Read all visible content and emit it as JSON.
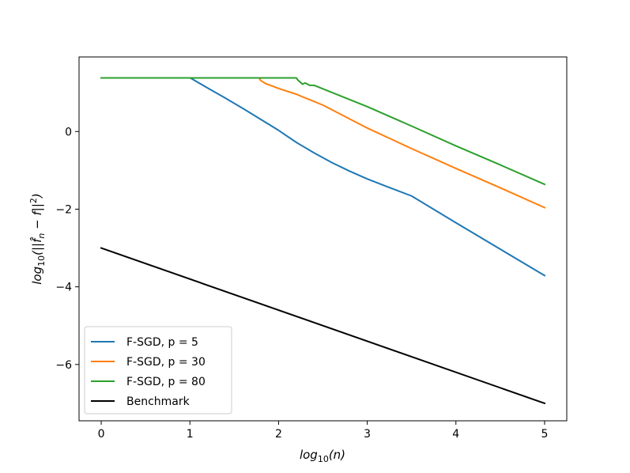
{
  "chart_data": {
    "type": "line",
    "title": "",
    "xlabel": "log10(n)",
    "ylabel": "log10(||f̂n − f||²)",
    "xlim": [
      -0.25,
      5.25
    ],
    "ylim": [
      -7.45,
      1.92
    ],
    "xticks": [
      0,
      1,
      2,
      3,
      4,
      5
    ],
    "yticks": [
      0,
      -2,
      -4,
      -6
    ],
    "xtick_labels": [
      "0",
      "1",
      "2",
      "3",
      "4",
      "5"
    ],
    "ytick_labels": [
      "0",
      "−2",
      "−4",
      "−6"
    ],
    "grid": false,
    "legend_position": "lower-left",
    "series": [
      {
        "name": "F-SGD, p = 5",
        "color": "#1f77b4",
        "x": [
          0,
          1.0,
          1.02,
          1.2,
          1.4,
          1.6,
          1.8,
          2.0,
          2.2,
          2.4,
          2.6,
          2.8,
          3.0,
          3.2,
          3.5,
          4.0,
          4.5,
          5.0
        ],
        "y": [
          1.38,
          1.38,
          1.36,
          1.12,
          0.86,
          0.59,
          0.31,
          0.03,
          -0.28,
          -0.55,
          -0.8,
          -1.02,
          -1.22,
          -1.4,
          -1.66,
          -2.35,
          -3.03,
          -3.71
        ]
      },
      {
        "name": "F-SGD, p = 30",
        "color": "#ff7f0e",
        "x": [
          0,
          1.78,
          1.8,
          1.85,
          2.0,
          2.2,
          2.5,
          3.0,
          3.5,
          4.0,
          4.5,
          5.0
        ],
        "y": [
          1.38,
          1.38,
          1.31,
          1.24,
          1.11,
          0.96,
          0.68,
          0.09,
          -0.44,
          -0.95,
          -1.45,
          -1.96
        ]
      },
      {
        "name": "F-SGD, p = 80",
        "color": "#2ca02c",
        "x": [
          0,
          2.2,
          2.22,
          2.27,
          2.3,
          2.35,
          2.4,
          2.5,
          3.0,
          3.5,
          4.0,
          4.5,
          5.0
        ],
        "y": [
          1.38,
          1.38,
          1.32,
          1.22,
          1.25,
          1.19,
          1.19,
          1.1,
          0.64,
          0.14,
          -0.37,
          -0.86,
          -1.36
        ]
      },
      {
        "name": "Benchmark",
        "color": "#000000",
        "x": [
          0,
          5
        ],
        "y": [
          -3.0,
          -7.0
        ]
      }
    ]
  }
}
